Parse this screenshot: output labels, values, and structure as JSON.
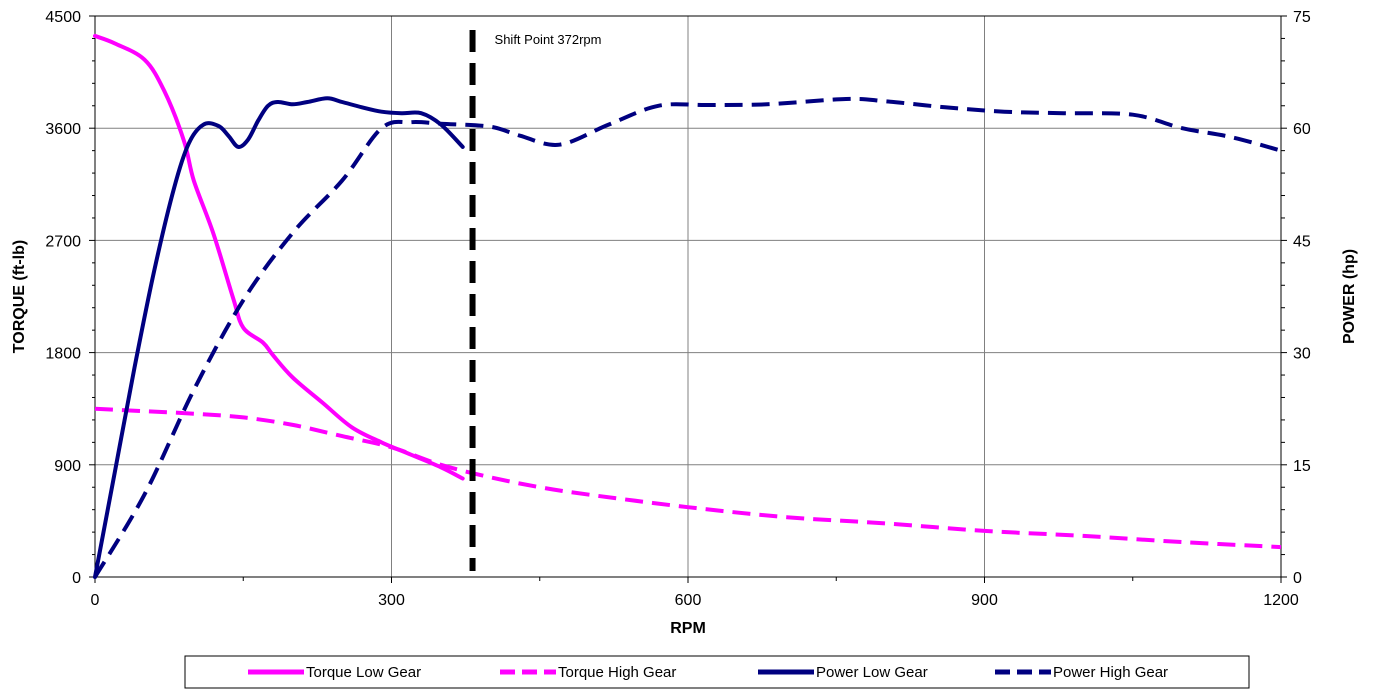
{
  "chart_data": {
    "type": "line",
    "xlabel": "RPM",
    "ylabel_left": "TORQUE (ft-lb)",
    "ylabel_right": "POWER (hp)",
    "xlim": [
      0,
      1200
    ],
    "ylim_left": [
      0,
      4500
    ],
    "ylim_right": [
      0,
      75
    ],
    "x_ticks": [
      "0",
      "300",
      "600",
      "900",
      "1200"
    ],
    "x_tick_values": [
      0,
      300,
      600,
      900,
      1200
    ],
    "y_left_ticks": [
      "0",
      "900",
      "1800",
      "2700",
      "3600",
      "4500"
    ],
    "y_left_tick_values": [
      0,
      900,
      1800,
      2700,
      3600,
      4500
    ],
    "y_right_ticks": [
      "0",
      "15",
      "30",
      "45",
      "60",
      "75"
    ],
    "y_right_tick_values": [
      0,
      15,
      30,
      45,
      60,
      75
    ],
    "grid": true,
    "legend_position": "bottom",
    "annotation": {
      "label": "Shift Point 372rpm",
      "x": 382
    },
    "series": [
      {
        "name": "Torque Low Gear",
        "axis": "left",
        "color": "#ff00ff",
        "dash": "solid",
        "x": [
          0,
          20,
          50,
          70,
          90,
          100,
          120,
          140,
          150,
          170,
          180,
          200,
          230,
          260,
          290,
          320,
          350,
          372
        ],
        "y": [
          4340,
          4280,
          4150,
          3900,
          3500,
          3180,
          2750,
          2230,
          2000,
          1880,
          1780,
          1600,
          1400,
          1200,
          1080,
          980,
          880,
          790
        ]
      },
      {
        "name": "Torque High Gear",
        "axis": "left",
        "color": "#ff00ff",
        "dash": "dashed",
        "x": [
          0,
          50,
          100,
          150,
          200,
          250,
          300,
          350,
          400,
          450,
          500,
          600,
          700,
          800,
          900,
          1000,
          1100,
          1200
        ],
        "y": [
          1350,
          1330,
          1310,
          1280,
          1220,
          1130,
          1040,
          900,
          800,
          720,
          660,
          560,
          480,
          430,
          370,
          330,
          280,
          240
        ]
      },
      {
        "name": "Power Low Gear",
        "axis": "right",
        "color": "#000080",
        "dash": "solid",
        "x": [
          0,
          20,
          40,
          60,
          80,
          95,
          110,
          125,
          135,
          145,
          155,
          165,
          175,
          185,
          200,
          215,
          235,
          250,
          270,
          290,
          310,
          330,
          350,
          372
        ],
        "y": [
          0,
          14,
          28,
          41,
          52,
          58,
          60.5,
          60.3,
          59,
          57.5,
          58.5,
          61,
          63,
          63.5,
          63.2,
          63.5,
          64,
          63.5,
          62.8,
          62.2,
          62,
          62,
          60.5,
          57.5
        ]
      },
      {
        "name": "Power High Gear",
        "axis": "right",
        "color": "#000080",
        "dash": "dashed",
        "x": [
          0,
          50,
          100,
          150,
          200,
          250,
          290,
          320,
          350,
          400,
          430,
          470,
          520,
          570,
          620,
          680,
          760,
          800,
          860,
          920,
          980,
          1050,
          1100,
          1150,
          1200
        ],
        "y": [
          0,
          11,
          25,
          37,
          46,
          53,
          60,
          60.8,
          60.6,
          60.2,
          59,
          57.8,
          60.5,
          63,
          63.1,
          63.2,
          63.9,
          63.6,
          62.8,
          62.2,
          62,
          61.8,
          60,
          58.8,
          57
        ]
      }
    ]
  }
}
